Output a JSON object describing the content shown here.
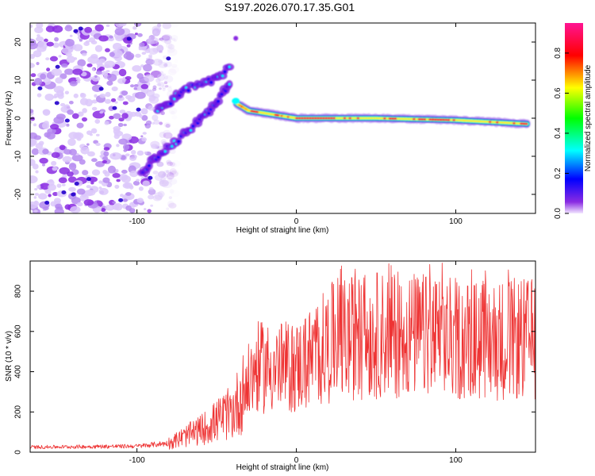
{
  "title": "S197.2026.070.17.35.G01",
  "charts": [
    {
      "type": "heatmap",
      "xlabel": "Height of straight line (km)",
      "ylabel": "Frequency (Hz)",
      "xlim": [
        -167,
        150
      ],
      "ylim": [
        -25,
        25
      ],
      "xticks": [
        -100,
        0,
        100
      ],
      "yticks": [
        -20,
        -10,
        0,
        10,
        20
      ],
      "colorbar": {
        "label": "Normalized spectral amplitude",
        "ticks": [
          0.0,
          0.2,
          0.4,
          0.6,
          0.8
        ],
        "range": [
          0,
          0.95
        ],
        "colors": [
          "#f2e6ff",
          "#8a2be2",
          "#0000ff",
          "#00ffff",
          "#00ff00",
          "#ffff00",
          "#ff0000",
          "#ff1493"
        ]
      },
      "features": {
        "noise_region_x": [
          -167,
          -80
        ],
        "upper_branch": [
          [
            -87,
            2
          ],
          [
            -80,
            4
          ],
          [
            -72,
            7
          ],
          [
            -62,
            9
          ],
          [
            -52,
            10
          ],
          [
            -42,
            13
          ]
        ],
        "lower_branch": [
          [
            -97,
            -14
          ],
          [
            -87,
            -10
          ],
          [
            -75,
            -6
          ],
          [
            -62,
            -1
          ],
          [
            -52,
            3
          ],
          [
            -42,
            9
          ]
        ],
        "main_band": [
          [
            -38,
            4
          ],
          [
            -30,
            2
          ],
          [
            0,
            0
          ],
          [
            50,
            0
          ],
          [
            100,
            -0.5
          ],
          [
            145,
            -1.5
          ]
        ]
      }
    },
    {
      "type": "line",
      "xlabel": "Height of straight line (km)",
      "ylabel": "SNR (10 * v/v)",
      "xlim": [
        -167,
        150
      ],
      "ylim": [
        0,
        950
      ],
      "xticks": [
        -100,
        0,
        100
      ],
      "yticks": [
        0,
        200,
        400,
        600,
        800
      ],
      "color": "#ee3333",
      "envelope": [
        [
          -167,
          25
        ],
        [
          -100,
          30
        ],
        [
          -80,
          45
        ],
        [
          -60,
          110
        ],
        [
          -40,
          200
        ],
        [
          -25,
          420
        ],
        [
          0,
          420
        ],
        [
          25,
          560
        ],
        [
          60,
          590
        ],
        [
          100,
          560
        ],
        [
          150,
          560
        ]
      ]
    }
  ]
}
